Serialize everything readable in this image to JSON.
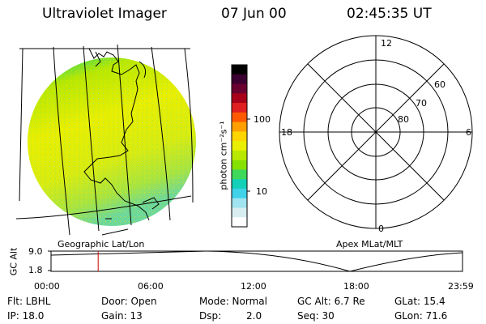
{
  "header": {
    "instrument": "Ultraviolet Imager",
    "date": "07 Jun 00",
    "time": "02:45:35 UT"
  },
  "colorbar": {
    "label": "photon cm⁻²s⁻¹",
    "ticks": [
      "100",
      "10"
    ],
    "colors": [
      "#000000",
      "#3a0030",
      "#6a0030",
      "#a8001a",
      "#e02020",
      "#ff5a00",
      "#ffa000",
      "#ffd500",
      "#e8ef00",
      "#b8e800",
      "#86e000",
      "#3ed85a",
      "#14d0b8",
      "#3fd2e8",
      "#9fe4f0",
      "#d8eef0",
      "#ffffff"
    ]
  },
  "left_panel": {
    "caption": "Geographic Lat/Lon"
  },
  "right_panel": {
    "caption": "Apex MLat/MLT",
    "mlt_labels": {
      "top": "12",
      "left": "18",
      "right": "6",
      "bottom": "0"
    },
    "lat_labels": [
      "60",
      "70",
      "80"
    ]
  },
  "timeline": {
    "axis_label": "GC Alt",
    "y_ticks": [
      "9.0",
      "1.8"
    ],
    "x_ticks": [
      "00:00",
      "06:00",
      "12:00",
      "18:00",
      "23:59"
    ],
    "marker_time": "02:45",
    "marker_color": "#cc0000"
  },
  "info": {
    "flt": "Flt: LBHL",
    "door": "Door: Open",
    "mode": "Mode: Normal",
    "gc_alt": "GC Alt: 6.7 Re",
    "glat": "GLat: 15.4",
    "ip": "IP: 18.0",
    "gain": "Gain: 13",
    "dsp_label": "Dsp:",
    "dsp_value": "2.0",
    "seq": "Seq: 30",
    "glon": "GLon: 71.6"
  }
}
